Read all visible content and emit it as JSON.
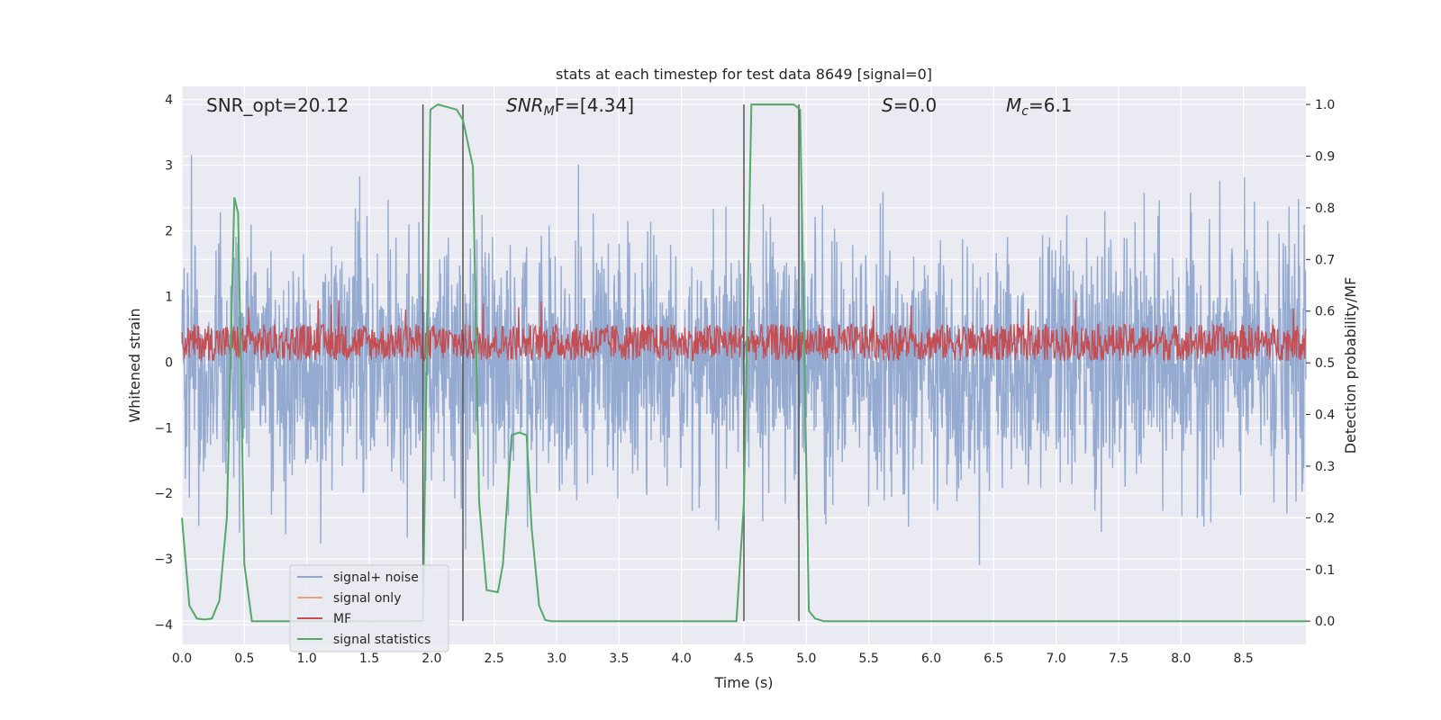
{
  "chart_data": {
    "type": "line",
    "title": "stats at each timestep for test data 8649 [signal=0]",
    "xlabel": "Time (s)",
    "ylabel_left": "Whitened strain",
    "ylabel_right": "Detection probability/MF",
    "xlim": [
      0.0,
      9.0
    ],
    "ylim_left": [
      -4.3,
      4.2
    ],
    "ylim_right": [
      -0.045,
      1.035
    ],
    "x_ticks": [
      "0.0",
      "0.5",
      "1.0",
      "1.5",
      "2.0",
      "2.5",
      "3.0",
      "3.5",
      "4.0",
      "4.5",
      "5.0",
      "5.5",
      "6.0",
      "6.5",
      "7.0",
      "7.5",
      "8.0",
      "8.5"
    ],
    "y_ticks_left": [
      "4",
      "3",
      "2",
      "1",
      "0",
      "−1",
      "−2",
      "−3",
      "−4"
    ],
    "y_ticks_right": [
      "1.0",
      "0.9",
      "0.8",
      "0.7",
      "0.6",
      "0.5",
      "0.4",
      "0.3",
      "0.2",
      "0.1",
      "0.0"
    ],
    "annotations": {
      "snr_opt": "SNR_opt=20.12",
      "snr_mf_base": "SNR",
      "snr_mf_sub": "M",
      "snr_mf_rest": "F=[4.34]",
      "s_italic": "S",
      "s_rest": "=0.0",
      "mc_base": "M",
      "mc_sub": "c",
      "mc_rest": "=6.1"
    },
    "legend": [
      "signal+ noise",
      "signal only",
      "MF",
      "signal statistics"
    ],
    "colors": {
      "signal_noise": "#8fa6cf",
      "signal_only": "#e8a183",
      "mf": "#c44e52",
      "statistics": "#55a868",
      "vlines": "#555555",
      "background": "#eaeaf2",
      "grid": "#ffffff"
    },
    "series": [
      {
        "name": "signal+ noise",
        "axis": "left",
        "description": "whitened strain noise, amplitude mostly within ±2.4, peaks to ~3.4, dips to ~-4.0",
        "envelope_typical": 2.3,
        "envelope_max": 3.4,
        "envelope_min": -4.0
      },
      {
        "name": "MF",
        "axis": "left",
        "center": 0.3,
        "amplitude": 0.35,
        "max": 0.95
      },
      {
        "name": "signal statistics",
        "axis": "right",
        "x": [
          0.0,
          0.06,
          0.12,
          0.18,
          0.24,
          0.3,
          0.36,
          0.42,
          0.45,
          0.5,
          0.56,
          0.7,
          1.0,
          1.5,
          1.85,
          1.93,
          1.99,
          2.05,
          2.2,
          2.25,
          2.33,
          2.38,
          2.44,
          2.53,
          2.57,
          2.64,
          2.7,
          2.76,
          2.8,
          2.86,
          2.91,
          2.96,
          3.1,
          3.5,
          4.0,
          4.44,
          4.5,
          4.56,
          4.7,
          4.9,
          4.95,
          5.02,
          5.07,
          5.14,
          5.5,
          6.0,
          7.0,
          8.0,
          9.0
        ],
        "y": [
          0.2,
          0.03,
          0.005,
          0.003,
          0.005,
          0.04,
          0.2,
          0.82,
          0.79,
          0.11,
          0.0,
          0.0,
          0.0,
          0.0,
          0.0,
          0.001,
          0.99,
          1.0,
          0.99,
          0.97,
          0.88,
          0.23,
          0.06,
          0.056,
          0.11,
          0.36,
          0.365,
          0.36,
          0.18,
          0.03,
          0.002,
          0.0,
          0.0,
          0.0,
          0.0,
          0.0,
          0.23,
          1.0,
          1.0,
          1.0,
          0.99,
          0.02,
          0.005,
          0.0,
          0.0,
          0.0,
          0.0,
          0.0,
          0.0
        ]
      },
      {
        "name": "signal only",
        "axis": "left",
        "values": []
      }
    ],
    "vertical_lines": [
      1.93,
      2.25,
      4.5,
      4.94
    ],
    "vertical_lines_range_right": [
      0.0,
      1.0
    ]
  }
}
